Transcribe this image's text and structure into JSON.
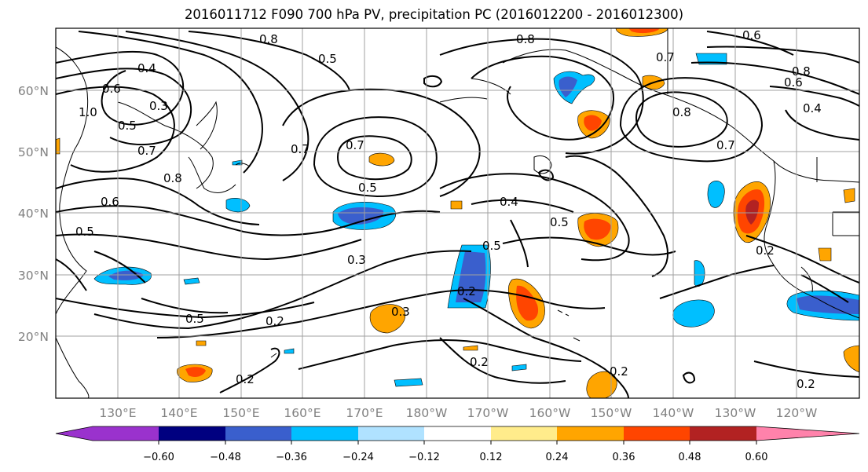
{
  "title": "2016011712 F090 700 hPa PV, precipitation PC (2016012200 - 2016012300)",
  "map": {
    "lon_labels": [
      "130°E",
      "140°E",
      "150°E",
      "160°E",
      "170°E",
      "180°W",
      "170°W",
      "160°W",
      "150°W",
      "140°W",
      "130°W",
      "120°W"
    ],
    "lat_labels": [
      "60°N",
      "50°N",
      "40°N",
      "30°N",
      "20°N"
    ],
    "contour_labels": [
      {
        "text": "0.4"
      },
      {
        "text": "0.3"
      },
      {
        "text": "0.5"
      },
      {
        "text": "0.7"
      },
      {
        "text": "0.8"
      },
      {
        "text": "0.6"
      },
      {
        "text": "1.0"
      },
      {
        "text": "0.5"
      },
      {
        "text": "0.7"
      },
      {
        "text": "0.8"
      },
      {
        "text": "0.7"
      },
      {
        "text": "0.5"
      },
      {
        "text": "0.8"
      },
      {
        "text": "0.7"
      },
      {
        "text": "0.6"
      },
      {
        "text": "0.8"
      },
      {
        "text": "0.6"
      },
      {
        "text": "0.4"
      },
      {
        "text": "0.8"
      },
      {
        "text": "0.7"
      },
      {
        "text": "0.4"
      },
      {
        "text": "0.5"
      },
      {
        "text": "0.5"
      },
      {
        "text": "0.3"
      },
      {
        "text": "0.5"
      },
      {
        "text": "0.2"
      },
      {
        "text": "0.2"
      },
      {
        "text": "0.2"
      },
      {
        "text": "0.2"
      },
      {
        "text": "0.3"
      },
      {
        "text": "0.2"
      },
      {
        "text": "0.2"
      },
      {
        "text": "0.2"
      },
      {
        "text": "0.5"
      },
      {
        "text": "0.6"
      }
    ]
  },
  "colorbar": {
    "levels": [
      -0.6,
      -0.48,
      -0.36,
      -0.24,
      -0.12,
      0.12,
      0.24,
      0.36,
      0.48,
      0.6
    ],
    "tick_labels": [
      "−0.60",
      "−0.48",
      "−0.36",
      "−0.24",
      "−0.12",
      "0.12",
      "0.24",
      "0.36",
      "0.48",
      "0.60"
    ],
    "colors": {
      "under": "#9a32cd",
      "b1": "#000080",
      "b2": "#3a5fcd",
      "b3": "#00bfff",
      "b4": "#b0e2ff",
      "b5": "#ffffff",
      "b6": "#ffec8b",
      "b7": "#ffa500",
      "b8": "#ff4500",
      "b9": "#b22222",
      "over": "#ff82ab"
    }
  }
}
